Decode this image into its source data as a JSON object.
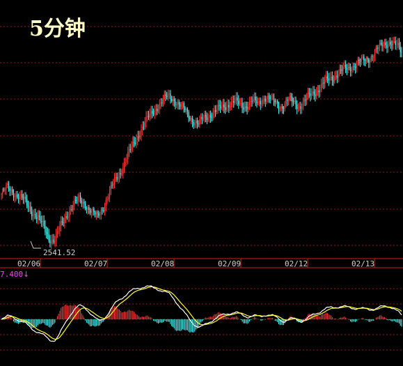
{
  "chart_data": [
    {
      "type": "candlestick",
      "title": "5分钟",
      "x_tick_labels": [
        "02/06",
        "02/07",
        "02/08",
        "02/09",
        "02/12",
        "02/13"
      ],
      "annotations": [
        {
          "label": "2541.52",
          "value": 2541.52,
          "note": "low marker"
        }
      ],
      "grid": "horizontal dashed",
      "colors": {
        "up": "#ff3c3c",
        "down": "#54ffff",
        "grid": "#9c1a1a",
        "axis": "#cc2020",
        "label": "#ffffcc",
        "background": "#000000"
      },
      "close_series": [
        2600,
        2608,
        2603,
        2597,
        2590,
        2580,
        2571,
        2559,
        2545,
        2542,
        2560,
        2576,
        2586,
        2593,
        2589,
        2578,
        2571,
        2584,
        2600,
        2617,
        2630,
        2646,
        2661,
        2677,
        2690,
        2700,
        2711,
        2718,
        2724,
        2720,
        2712,
        2703,
        2695,
        2689,
        2696,
        2702,
        2706,
        2709,
        2715,
        2717,
        2712,
        2713,
        2718,
        2714,
        2724,
        2721,
        2715,
        2712,
        2719,
        2716,
        2712,
        2719,
        2727,
        2733,
        2740,
        2746,
        2752,
        2756,
        2759,
        2764,
        2767,
        2770,
        2776,
        2783,
        2790,
        2794,
        2788,
        2780
      ]
    },
    {
      "type": "macd",
      "value_label": "7.400",
      "indicator": "↓",
      "colors": {
        "pos_bar": "#ff3c3c",
        "neg_bar": "#54ffff",
        "dif": "#ffffff",
        "dea": "#ffff30",
        "value": "#ff40ff"
      }
    }
  ]
}
